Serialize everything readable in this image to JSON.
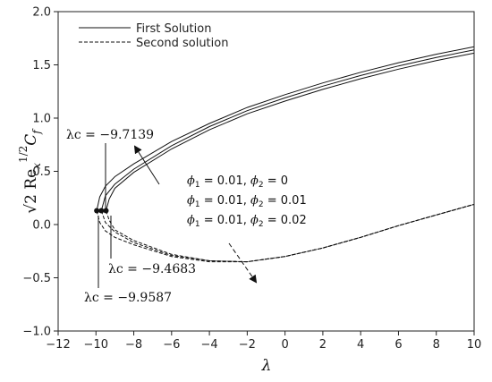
{
  "chart_data": {
    "type": "line",
    "xlabel": "λ",
    "ylabel": "√2 Re_x^{1/2} C_f",
    "xlim": [
      -12,
      10
    ],
    "ylim": [
      -1.0,
      2.0
    ],
    "x_ticks": [
      "−12",
      "−10",
      "−8",
      "−6",
      "−4",
      "−2",
      "0",
      "2",
      "4",
      "6",
      "8",
      "10"
    ],
    "y_ticks": [
      "−1.0",
      "−0.5",
      "0.0",
      "0.5",
      "1.0",
      "1.5",
      "2.0"
    ],
    "legend": {
      "placement": "top-left",
      "entries": [
        "First Solution",
        "Second solution"
      ]
    },
    "parameter_labels": [
      {
        "phi1": "0.01",
        "phi2": "0"
      },
      {
        "phi1": "0.01",
        "phi2": "0.01"
      },
      {
        "phi1": "0.01",
        "phi2": "0.02"
      }
    ],
    "critical_points": [
      {
        "label": "λc = −9.7139",
        "x": -9.7139,
        "y": 0.13
      },
      {
        "label": "λc = −9.4683",
        "x": -9.4683,
        "y": 0.13
      },
      {
        "label": "λc = −9.9587",
        "x": -9.9587,
        "y": 0.13
      }
    ],
    "series": [
      {
        "solution": "first",
        "phi2": "0",
        "x": [
          -9.7139,
          -9.5,
          -9,
          -8,
          -6,
          -4,
          -2,
          0,
          2,
          4,
          6,
          8,
          10
        ],
        "y": [
          0.13,
          0.27,
          0.38,
          0.52,
          0.74,
          0.92,
          1.07,
          1.19,
          1.3,
          1.4,
          1.49,
          1.57,
          1.64
        ]
      },
      {
        "solution": "first",
        "phi2": "0.01",
        "x": [
          -9.4683,
          -9.3,
          -9,
          -8,
          -6,
          -4,
          -2,
          0,
          2,
          4,
          6,
          8,
          10
        ],
        "y": [
          0.13,
          0.24,
          0.34,
          0.49,
          0.71,
          0.89,
          1.04,
          1.16,
          1.27,
          1.37,
          1.46,
          1.54,
          1.61
        ]
      },
      {
        "solution": "first",
        "phi2": "0.02",
        "x": [
          -9.9587,
          -9.8,
          -9.5,
          -9,
          -8,
          -6,
          -4,
          -2,
          0,
          2,
          4,
          6,
          8,
          10
        ],
        "y": [
          0.13,
          0.26,
          0.36,
          0.45,
          0.57,
          0.78,
          0.95,
          1.1,
          1.22,
          1.33,
          1.43,
          1.52,
          1.6,
          1.67
        ]
      },
      {
        "solution": "second",
        "phi2": "0",
        "x": [
          -9.7139,
          -9.5,
          -9,
          -8,
          -6,
          -4,
          -2,
          0,
          2,
          4,
          6,
          8,
          10
        ],
        "y": [
          0.13,
          0.02,
          -0.07,
          -0.17,
          -0.29,
          -0.34,
          -0.35,
          -0.3,
          -0.22,
          -0.12,
          -0.01,
          0.09,
          0.19
        ]
      },
      {
        "solution": "second",
        "phi2": "0.01",
        "x": [
          -9.4683,
          -9.3,
          -9,
          -8,
          -6,
          -4,
          -2,
          0,
          2,
          4,
          6,
          8,
          10
        ],
        "y": [
          0.13,
          0.04,
          -0.05,
          -0.15,
          -0.28,
          -0.34,
          -0.35,
          -0.3,
          -0.22,
          -0.12,
          -0.01,
          0.09,
          0.19
        ]
      },
      {
        "solution": "second",
        "phi2": "0.02",
        "x": [
          -9.9587,
          -9.8,
          -9.5,
          -9,
          -8,
          -6,
          -4,
          -2,
          0,
          2,
          4,
          6,
          8,
          10
        ],
        "y": [
          0.13,
          0.02,
          -0.06,
          -0.12,
          -0.19,
          -0.3,
          -0.35,
          -0.35,
          -0.3,
          -0.22,
          -0.12,
          -0.01,
          0.09,
          0.19
        ]
      }
    ]
  }
}
